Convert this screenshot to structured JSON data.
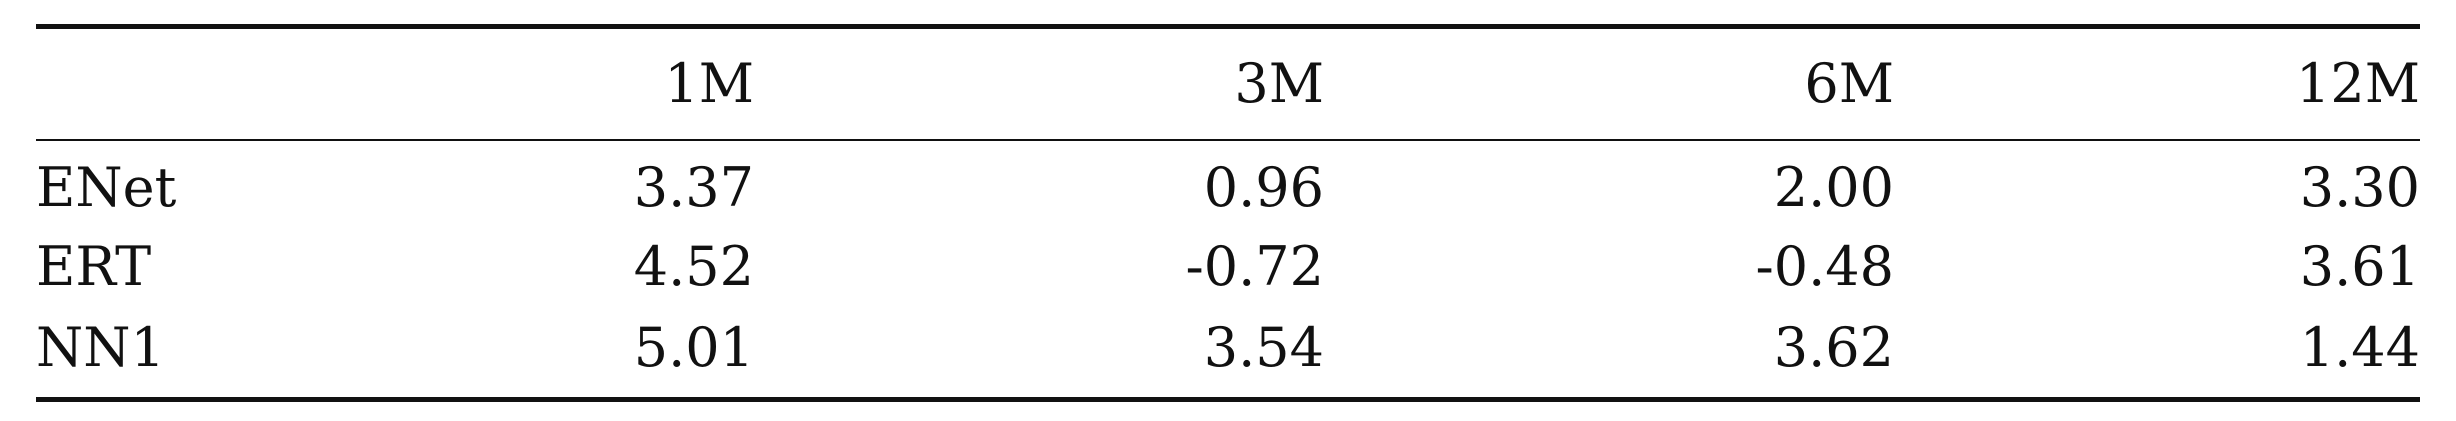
{
  "table": {
    "headers": [
      "",
      "1M",
      "3M",
      "6M",
      "12M"
    ],
    "rows": [
      {
        "label": "ENet",
        "values": [
          "3.37",
          "0.96",
          "2.00",
          "3.30"
        ]
      },
      {
        "label": "ERT",
        "values": [
          "4.52",
          "-0.72",
          "-0.48",
          "3.61"
        ]
      },
      {
        "label": "NN1",
        "values": [
          "5.01",
          "3.54",
          "3.62",
          "1.44"
        ]
      }
    ]
  }
}
